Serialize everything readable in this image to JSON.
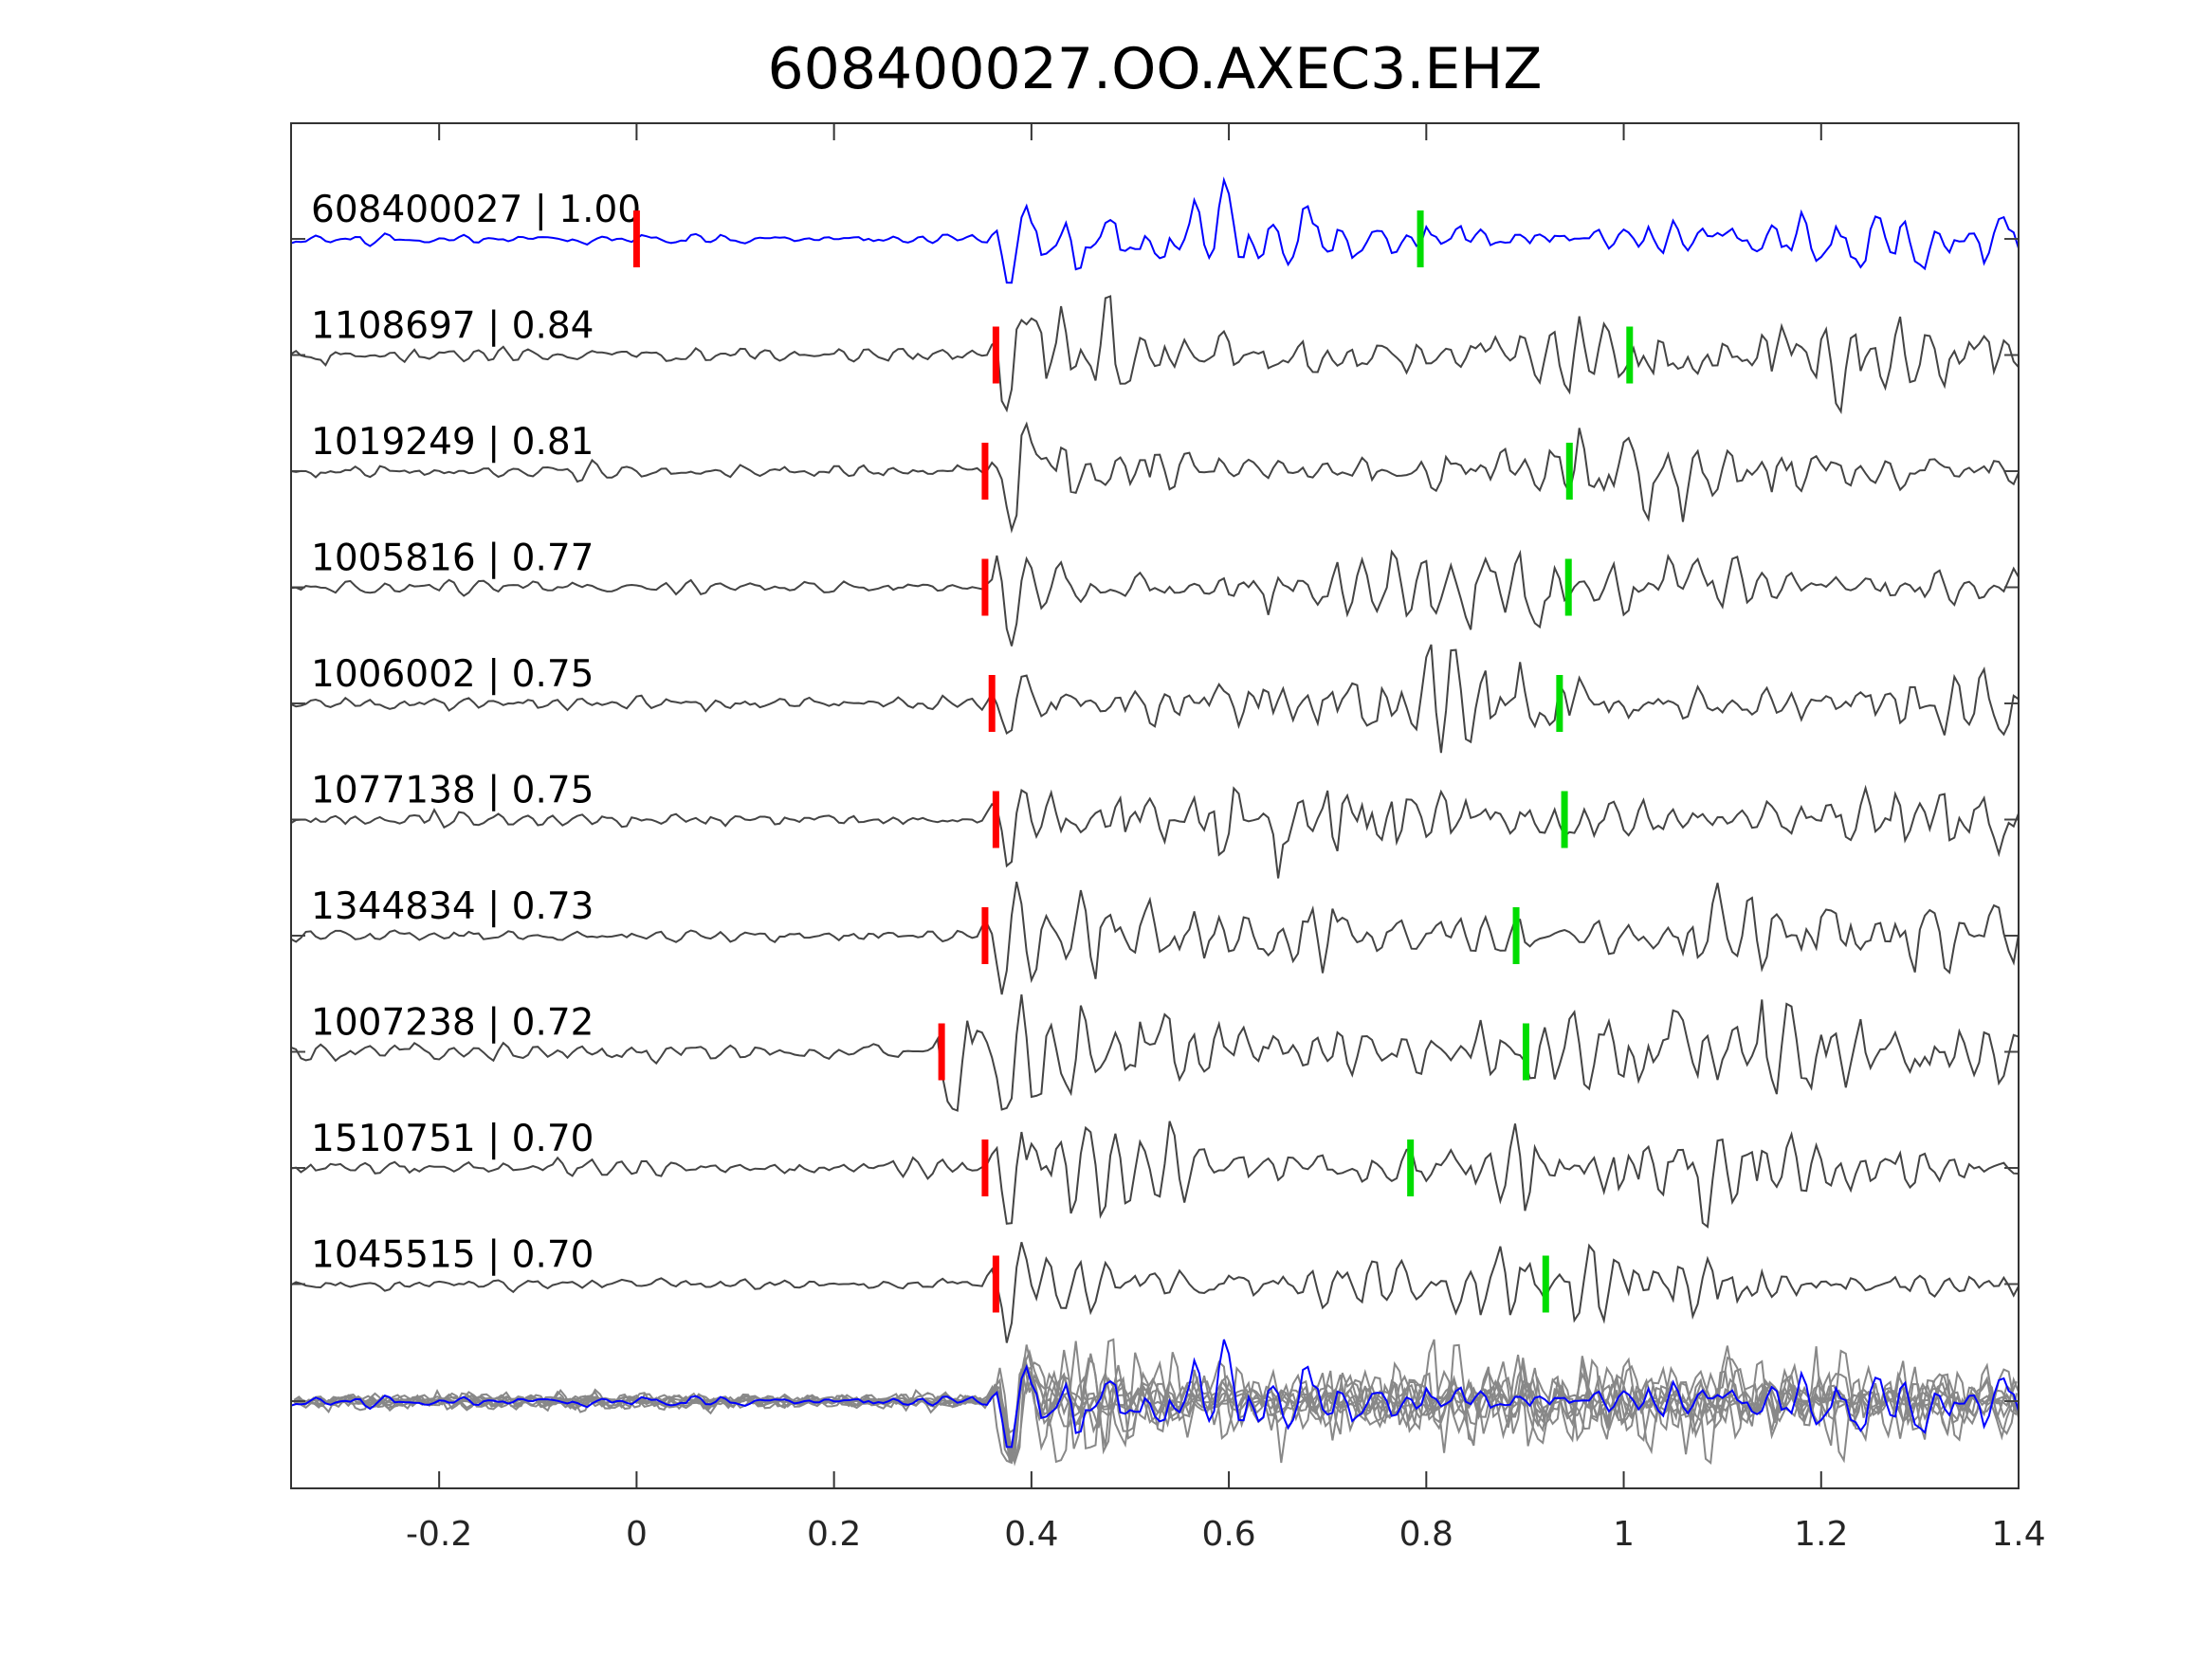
{
  "chart_data": {
    "type": "line",
    "title": "608400027.OO.AXEC3.EHZ",
    "xlabel": "",
    "ylabel": "",
    "xlim": [
      -0.35,
      1.4
    ],
    "xticks": [
      "-0.2",
      "0",
      "0.2",
      "0.4",
      "0.6",
      "0.8",
      "1",
      "1.2",
      "1.4"
    ],
    "xtick_values": [
      -0.2,
      0,
      0.2,
      0.4,
      0.6,
      0.8,
      1.0,
      1.2,
      1.4
    ],
    "grid": false,
    "template_color": "#0000ff",
    "trace_color": "#444444",
    "stack_color": "#888888",
    "p_pick_color": "#ff0000",
    "s_pick_color": "#00dd00",
    "traces": [
      {
        "id": "608400027",
        "cc": "1.00",
        "label": "608400027 | 1.00",
        "p_pick": 0.0,
        "s_pick": 0.794,
        "onset": 0.365,
        "is_template": true
      },
      {
        "id": "1108697",
        "cc": "0.84",
        "label": "1108697 | 0.84",
        "p_pick": 0.364,
        "s_pick": 1.006,
        "onset": 0.362
      },
      {
        "id": "1019249",
        "cc": "0.81",
        "label": "1019249 | 0.81",
        "p_pick": 0.353,
        "s_pick": 0.945,
        "onset": 0.362
      },
      {
        "id": "1005816",
        "cc": "0.77",
        "label": "1005816 | 0.77",
        "p_pick": 0.353,
        "s_pick": 0.944,
        "onset": 0.362
      },
      {
        "id": "1006002",
        "cc": "0.75",
        "label": "1006002 | 0.75",
        "p_pick": 0.36,
        "s_pick": 0.935,
        "onset": 0.362
      },
      {
        "id": "1077138",
        "cc": "0.75",
        "label": "1077138 | 0.75",
        "p_pick": 0.364,
        "s_pick": 0.94,
        "onset": 0.362
      },
      {
        "id": "1344834",
        "cc": "0.73",
        "label": "1344834 | 0.73",
        "p_pick": 0.353,
        "s_pick": 0.891,
        "onset": 0.355
      },
      {
        "id": "1007238",
        "cc": "0.72",
        "label": "1007238 | 0.72",
        "p_pick": 0.309,
        "s_pick": 0.901,
        "onset": 0.31
      },
      {
        "id": "1510751",
        "cc": "0.70",
        "label": "1510751 | 0.70",
        "p_pick": 0.353,
        "s_pick": 0.784,
        "onset": 0.362
      },
      {
        "id": "1045515",
        "cc": "0.70",
        "label": "1045515 | 0.70",
        "p_pick": 0.364,
        "s_pick": 0.921,
        "onset": 0.362
      }
    ],
    "stack": {
      "label": "",
      "description_series": "all traces overlaid, template in blue"
    }
  }
}
